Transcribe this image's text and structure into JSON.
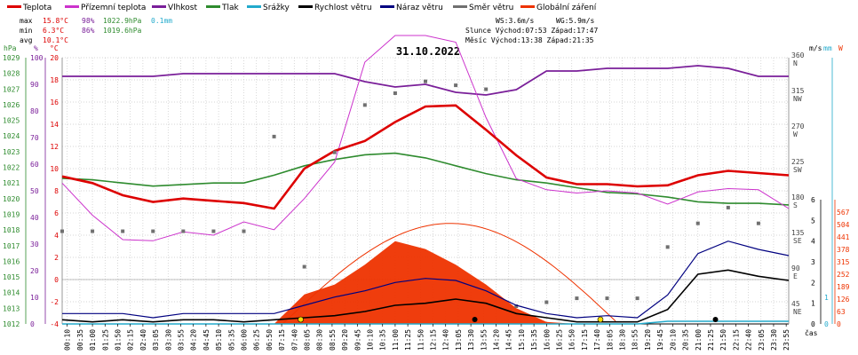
{
  "chart_data": {
    "type": "line",
    "title": "31.10.2022",
    "xlabel": "čas",
    "legend": [
      {
        "name": "Teplota",
        "color": "#dd0000"
      },
      {
        "name": "Přízemní teplota",
        "color": "#cc33cc"
      },
      {
        "name": "Vlhkost",
        "color": "#7a1f99"
      },
      {
        "name": "Tlak",
        "color": "#2e8b2e"
      },
      {
        "name": "Srážky",
        "color": "#22aacc"
      },
      {
        "name": "Rychlost větru",
        "color": "#000000"
      },
      {
        "name": "Náraz větru",
        "color": "#000080"
      },
      {
        "name": "Směr větru",
        "color": "#707070"
      },
      {
        "name": "Globální záření",
        "color": "#ee3300"
      }
    ],
    "stats": {
      "max_label": "max",
      "min_label": "min",
      "avg_label": "avg",
      "max_temp": "15.8°C",
      "max_hum": "98%",
      "max_press": "1022.9hPa",
      "max_rain": "0.1mm",
      "min_temp": "6.3°C",
      "min_hum": "86%",
      "min_press": "1019.6hPa",
      "avg_temp": "10.1°C",
      "ws": "WS:3.6m/s",
      "wg": "WG:5.9m/s",
      "sun": "Slunce Východ:07:53  Západ:17:47",
      "moon": "Měsíc  Východ:13:38  Západ:21:35"
    },
    "axes": {
      "hpa_unit": "hPa",
      "pct_unit": "%",
      "c_unit": "°C",
      "hpa": [
        "1012",
        "1013",
        "1014",
        "1015",
        "1016",
        "1017",
        "1018",
        "1019",
        "1020",
        "1021",
        "1022",
        "1023",
        "1024",
        "1025",
        "1026",
        "1027",
        "1028",
        "1029"
      ],
      "pct": [
        "0",
        "10",
        "20",
        "30",
        "40",
        "50",
        "60",
        "70",
        "80",
        "90",
        "100"
      ],
      "celsius": [
        "-4",
        "-2",
        "0",
        "2",
        "4",
        "6",
        "8",
        "10",
        "12",
        "14",
        "16",
        "18",
        "20"
      ],
      "ms_unit": "m/s",
      "mm_unit": "mm",
      "w_unit": "W",
      "ms": [
        "0",
        "1",
        "2",
        "3",
        "4",
        "5",
        "6"
      ],
      "mm": [
        "0",
        "1"
      ],
      "watts": [
        "0",
        "63",
        "126",
        "189",
        "252",
        "315",
        "378",
        "441",
        "504",
        "567"
      ],
      "dir": [
        {
          "deg": "360",
          "card": "N"
        },
        {
          "deg": "315",
          "card": "NW"
        },
        {
          "deg": "270",
          "card": "W"
        },
        {
          "deg": "225",
          "card": "SW"
        },
        {
          "deg": "180",
          "card": "S"
        },
        {
          "deg": "135",
          "card": "SE"
        },
        {
          "deg": "90",
          "card": "E"
        },
        {
          "deg": "45",
          "card": "NE"
        }
      ],
      "ylim_temp": [
        -4,
        20
      ],
      "ylim_hum": [
        0,
        100
      ],
      "ylim_press": [
        1012,
        1029
      ],
      "ylim_wind": [
        0,
        6
      ],
      "ylim_rad": [
        0,
        630
      ]
    },
    "x_ticks": [
      "00:10",
      "00:35",
      "01:00",
      "01:25",
      "01:50",
      "02:15",
      "02:40",
      "03:05",
      "03:30",
      "03:55",
      "04:20",
      "04:45",
      "05:10",
      "05:35",
      "06:00",
      "06:25",
      "06:50",
      "07:15",
      "07:40",
      "08:05",
      "08:30",
      "08:55",
      "09:20",
      "09:45",
      "10:10",
      "10:35",
      "11:00",
      "11:25",
      "11:50",
      "12:15",
      "12:40",
      "13:05",
      "13:30",
      "13:55",
      "14:20",
      "14:45",
      "15:10",
      "15:35",
      "16:00",
      "16:25",
      "16:50",
      "17:15",
      "17:40",
      "18:05",
      "18:30",
      "18:55",
      "19:20",
      "19:45",
      "20:10",
      "20:35",
      "21:00",
      "21:25",
      "21:50",
      "22:15",
      "22:40",
      "23:05",
      "23:30",
      "23:55"
    ],
    "x_hours": [
      0,
      1,
      2,
      3,
      4,
      5,
      6,
      7,
      8,
      9,
      10,
      11,
      12,
      13,
      14,
      15,
      16,
      17,
      18,
      19,
      20,
      21,
      22,
      23,
      24
    ],
    "series": [
      {
        "name": "Teplota",
        "unit": "°C",
        "values": [
          9.3,
          8.7,
          7.6,
          7.0,
          7.3,
          7.1,
          6.9,
          6.4,
          10.0,
          11.6,
          12.5,
          14.2,
          15.6,
          15.7,
          13.5,
          11.2,
          9.2,
          8.6,
          8.6,
          8.4,
          8.5,
          9.4,
          9.8,
          9.6,
          9.4
        ]
      },
      {
        "name": "Přízemní teplota",
        "unit": "°C",
        "values": [
          8.7,
          5.8,
          3.6,
          3.5,
          4.3,
          4.0,
          5.2,
          4.5,
          7.3,
          10.6,
          19.6,
          22.0,
          22.0,
          21.4,
          14.6,
          9.1,
          8.1,
          7.8,
          8.0,
          7.8,
          6.8,
          7.9,
          8.2,
          8.1,
          6.4
        ]
      },
      {
        "name": "Vlhkost",
        "unit": "%",
        "values": [
          93,
          93,
          93,
          93,
          94,
          94,
          94,
          94,
          94,
          94,
          91,
          89,
          90,
          87,
          86,
          88,
          95,
          95,
          96,
          96,
          96,
          97,
          96,
          93,
          93
        ]
      },
      {
        "name": "Tlak",
        "unit": "hPa",
        "values": [
          1021.3,
          1021.2,
          1021.0,
          1020.8,
          1020.9,
          1021.0,
          1021.0,
          1021.5,
          1022.1,
          1022.5,
          1022.8,
          1022.9,
          1022.6,
          1022.1,
          1021.6,
          1021.2,
          1021.0,
          1020.7,
          1020.4,
          1020.3,
          1020.1,
          1019.8,
          1019.7,
          1019.7,
          1019.6
        ]
      },
      {
        "name": "Rychlost větru",
        "unit": "m/s",
        "values": [
          0.2,
          0.1,
          0.2,
          0.1,
          0.2,
          0.2,
          0.1,
          0.2,
          0.3,
          0.4,
          0.6,
          0.9,
          1.0,
          1.2,
          1.0,
          0.5,
          0.3,
          0.1,
          0.1,
          0.1,
          0.7,
          2.4,
          2.6,
          2.3,
          2.1
        ]
      },
      {
        "name": "Náraz větru",
        "unit": "m/s",
        "values": [
          0.5,
          0.5,
          0.5,
          0.3,
          0.5,
          0.5,
          0.5,
          0.5,
          0.9,
          1.3,
          1.6,
          2.0,
          2.2,
          2.1,
          1.6,
          0.9,
          0.5,
          0.3,
          0.4,
          0.3,
          1.4,
          3.4,
          4.0,
          3.6,
          3.3
        ]
      },
      {
        "name": "Směr větru",
        "unit": "°",
        "values": [
          140,
          140,
          140,
          140,
          140,
          140,
          140,
          260,
          95,
          240,
          300,
          315,
          330,
          325,
          320,
          45,
          50,
          55,
          55,
          55,
          120,
          150,
          170,
          150,
          170
        ]
      },
      {
        "name": "Globální záření",
        "unit": "W",
        "values": [
          0,
          0,
          0,
          0,
          0,
          0,
          0,
          0,
          150,
          200,
          300,
          420,
          380,
          300,
          200,
          80,
          10,
          0,
          0,
          0,
          0,
          0,
          0,
          0,
          0
        ]
      },
      {
        "name": "Srážky",
        "unit": "mm",
        "values": [
          0,
          0,
          0,
          0,
          0,
          0,
          0,
          0,
          0,
          0,
          0,
          0,
          0,
          0,
          0,
          0,
          0,
          0,
          0,
          0,
          0.1,
          0.1,
          0.1,
          0.1,
          0.1
        ]
      }
    ],
    "theoretical_radiation_peak": 510,
    "sunrise_h": 7.88,
    "sunset_h": 17.78,
    "moonrise_h": 13.63,
    "moonset_h": 21.58
  }
}
